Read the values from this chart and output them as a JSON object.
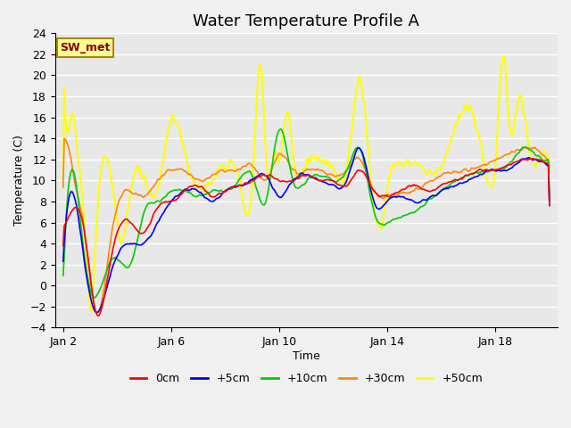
{
  "title": "Water Temperature Profile A",
  "xlabel": "Time",
  "ylabel": "Temperature (C)",
  "ylim": [
    -4,
    24
  ],
  "yticks": [
    -4,
    -2,
    0,
    2,
    4,
    6,
    8,
    10,
    12,
    14,
    16,
    18,
    20,
    22,
    24
  ],
  "xlim_days": [
    2,
    20
  ],
  "xtick_days": [
    2,
    6,
    10,
    14,
    18
  ],
  "xtick_labels": [
    "Jan 2",
    "Jan 6",
    "Jan 10",
    "Jan 14",
    "Jan 18"
  ],
  "series_colors": [
    "#ff0000",
    "#0000ff",
    "#00cc00",
    "#ff8800",
    "#ffff00"
  ],
  "series_labels": [
    "0cm",
    "+5cm",
    "+10cm",
    "+30cm",
    "+50cm"
  ],
  "series_linewidths": [
    1.2,
    1.2,
    1.2,
    1.2,
    1.5
  ],
  "bg_color": "#e8e8e8",
  "plot_bg_color": "#e8e8e8",
  "legend_text": "SW_met",
  "legend_box_color": "#ffff99",
  "legend_box_edge": "#aa8800",
  "grid_color": "#ffffff",
  "title_fontsize": 13,
  "label_fontsize": 9,
  "tick_fontsize": 9
}
